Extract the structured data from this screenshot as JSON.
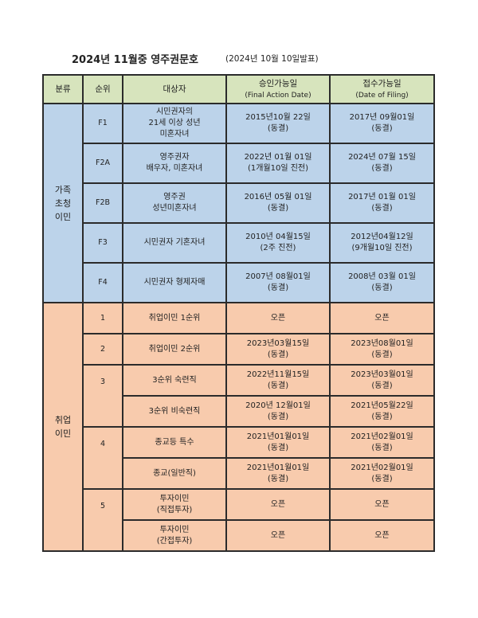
{
  "title": "2024년 11월중 영주권문호",
  "subtitle": "(2024년 10월 10일발표)",
  "header": {
    "category": "분류",
    "rank": "순위",
    "target": "대상자",
    "final_action": "승인가능일",
    "final_action_en": "(Final Action Date)",
    "filing": "접수가능일",
    "filing_en": "(Date of Filing)"
  },
  "family": {
    "category": "가족\n초청\n이민",
    "rows": [
      {
        "rank": "F1",
        "target": "시민권자의\n21세 이상 성년\n미혼자녀",
        "final_action": "2015년10월 22일\n(동결)",
        "filing": "2017년 09월01일\n(동결)"
      },
      {
        "rank": "F2A",
        "target": "영주권자\n배우자, 미혼자녀",
        "final_action": "2022년 01월 01일\n(1개월10일 진전)",
        "filing": "2024년 07월 15일\n(동결)"
      },
      {
        "rank": "F2B",
        "target": "영주권\n성년미혼자녀",
        "final_action": "2016년 05월 01일\n(동결)",
        "filing": "2017년 01월 01일\n(동결)"
      },
      {
        "rank": "F3",
        "target": "시민권자 기혼자녀",
        "final_action": "2010년 04월15일\n(2주 진전)",
        "filing": "2012년04월12일\n(9개월10일 진전)"
      },
      {
        "rank": "F4",
        "target": "시민권자 형제자매",
        "final_action": "2007년 08월01일\n(동결)",
        "filing": "2008년 03월 01일\n(동결)"
      }
    ]
  },
  "employment": {
    "category": "취업\n이민",
    "rows": [
      {
        "rank": "1",
        "target": "취업이민 1순위",
        "final_action": "오픈",
        "filing": "오픈"
      },
      {
        "rank": "2",
        "target": "취업이민 2순위",
        "final_action": "2023년03월15일\n(동결)",
        "filing": "2023년08월01일\n(동결)"
      },
      {
        "rank": "3",
        "target": "3순위 숙련직",
        "final_action": "2022년11월15일\n(동결)",
        "filing": "2023년03월01일\n(동결)"
      },
      {
        "target": "3순위 비숙련직",
        "final_action": "2020년 12월01일\n(동결)",
        "filing": "2021년05월22일\n(동결)"
      },
      {
        "rank": "4",
        "target": "종교등 특수",
        "final_action": "2021년01월01일\n(동결)",
        "filing": "2021년02월01일\n(동결)"
      },
      {
        "target": "종교(일반직)",
        "final_action": "2021년01월01일\n(동결)",
        "filing": "2021년02월01일\n(동결)"
      },
      {
        "rank": "5",
        "target": "투자이민\n(직접투자)",
        "final_action": "오픈",
        "filing": "오픈"
      },
      {
        "target": "투자이민\n(간접투자)",
        "final_action": "오픈",
        "filing": "오픈"
      }
    ]
  },
  "colors": {
    "header": "#d7e4bd",
    "family": "#bcd3ea",
    "employment": "#f8cbad"
  }
}
